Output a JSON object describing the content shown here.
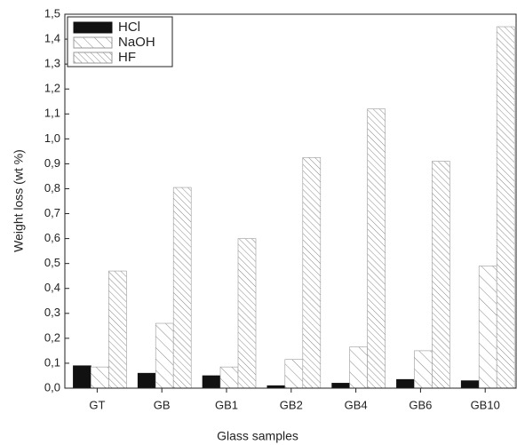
{
  "chart_data": {
    "type": "bar",
    "x_label": "Glass samples",
    "y_label": "Weight loss (wt %)",
    "categories": [
      "GT",
      "GB",
      "GB1",
      "GB2",
      "GB4",
      "GB6",
      "GB10"
    ],
    "series": [
      {
        "name": "HCl",
        "color": "#111111",
        "pattern": "solid",
        "values": [
          0.09,
          0.06,
          0.05,
          0.01,
          0.02,
          0.035,
          0.03
        ]
      },
      {
        "name": "NaOH",
        "color": "#888888",
        "pattern": "hatch",
        "values": [
          0.085,
          0.26,
          0.085,
          0.115,
          0.165,
          0.15,
          0.49
        ]
      },
      {
        "name": "HF",
        "color": "#888888",
        "pattern": "dense-hatch",
        "values": [
          0.47,
          0.805,
          0.6,
          0.925,
          1.12,
          0.91,
          1.45
        ]
      }
    ],
    "ylim": [
      0,
      1.5
    ],
    "yticks": [
      {
        "value": 0,
        "label": "0,0"
      },
      {
        "value": 0.1,
        "label": "0,1"
      },
      {
        "value": 0.2,
        "label": "0,2"
      },
      {
        "value": 0.3,
        "label": "0,3"
      },
      {
        "value": 0.4,
        "label": "0,4"
      },
      {
        "value": 0.5,
        "label": "0,5"
      },
      {
        "value": 0.6,
        "label": "0,6"
      },
      {
        "value": 0.7,
        "label": "0,7"
      },
      {
        "value": 0.8,
        "label": "0,8"
      },
      {
        "value": 0.9,
        "label": "0,9"
      },
      {
        "value": 1.0,
        "label": "1,0"
      },
      {
        "value": 1.1,
        "label": "1,1"
      },
      {
        "value": 1.2,
        "label": "1,2"
      },
      {
        "value": 1.3,
        "label": "1,3"
      },
      {
        "value": 1.4,
        "label": "1,4"
      },
      {
        "value": 1.5,
        "label": "1,5"
      }
    ],
    "legend": "top-left",
    "grid": false
  }
}
